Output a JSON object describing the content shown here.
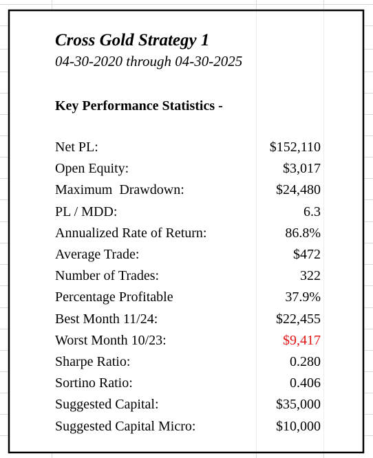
{
  "header": {
    "title": "Cross Gold Strategy 1",
    "subtitle": "04-30-2020 through 04-30-2025"
  },
  "section": {
    "heading": "Key Performance Statistics -"
  },
  "table": {
    "rows": [
      {
        "label": "Net PL:",
        "value": "$152,110"
      },
      {
        "label": "Open Equity:",
        "value": "$3,017"
      },
      {
        "label": "Maximum  Drawdown:",
        "value": "$24,480"
      },
      {
        "label": "PL / MDD:",
        "value": "6.3"
      },
      {
        "label": "Annualized Rate of Return:",
        "value": "86.8%"
      },
      {
        "label": "Average Trade:",
        "value": "$472"
      },
      {
        "label": "Number of Trades:",
        "value": "322"
      },
      {
        "label": "Percentage Profitable",
        "value": "37.9%"
      },
      {
        "label": "Best Month 11/24:",
        "value": "$22,455"
      },
      {
        "label": "Worst Month 10/23:",
        "value": "$9,417",
        "color": "#e01010"
      },
      {
        "label": "Sharpe Ratio:",
        "value": "0.280"
      },
      {
        "label": "Sortino Ratio:",
        "value": "0.406"
      },
      {
        "label": "Suggested Capital:",
        "value": "$35,000"
      },
      {
        "label": "Suggested Capital Micro:",
        "value": "$10,000"
      }
    ]
  }
}
